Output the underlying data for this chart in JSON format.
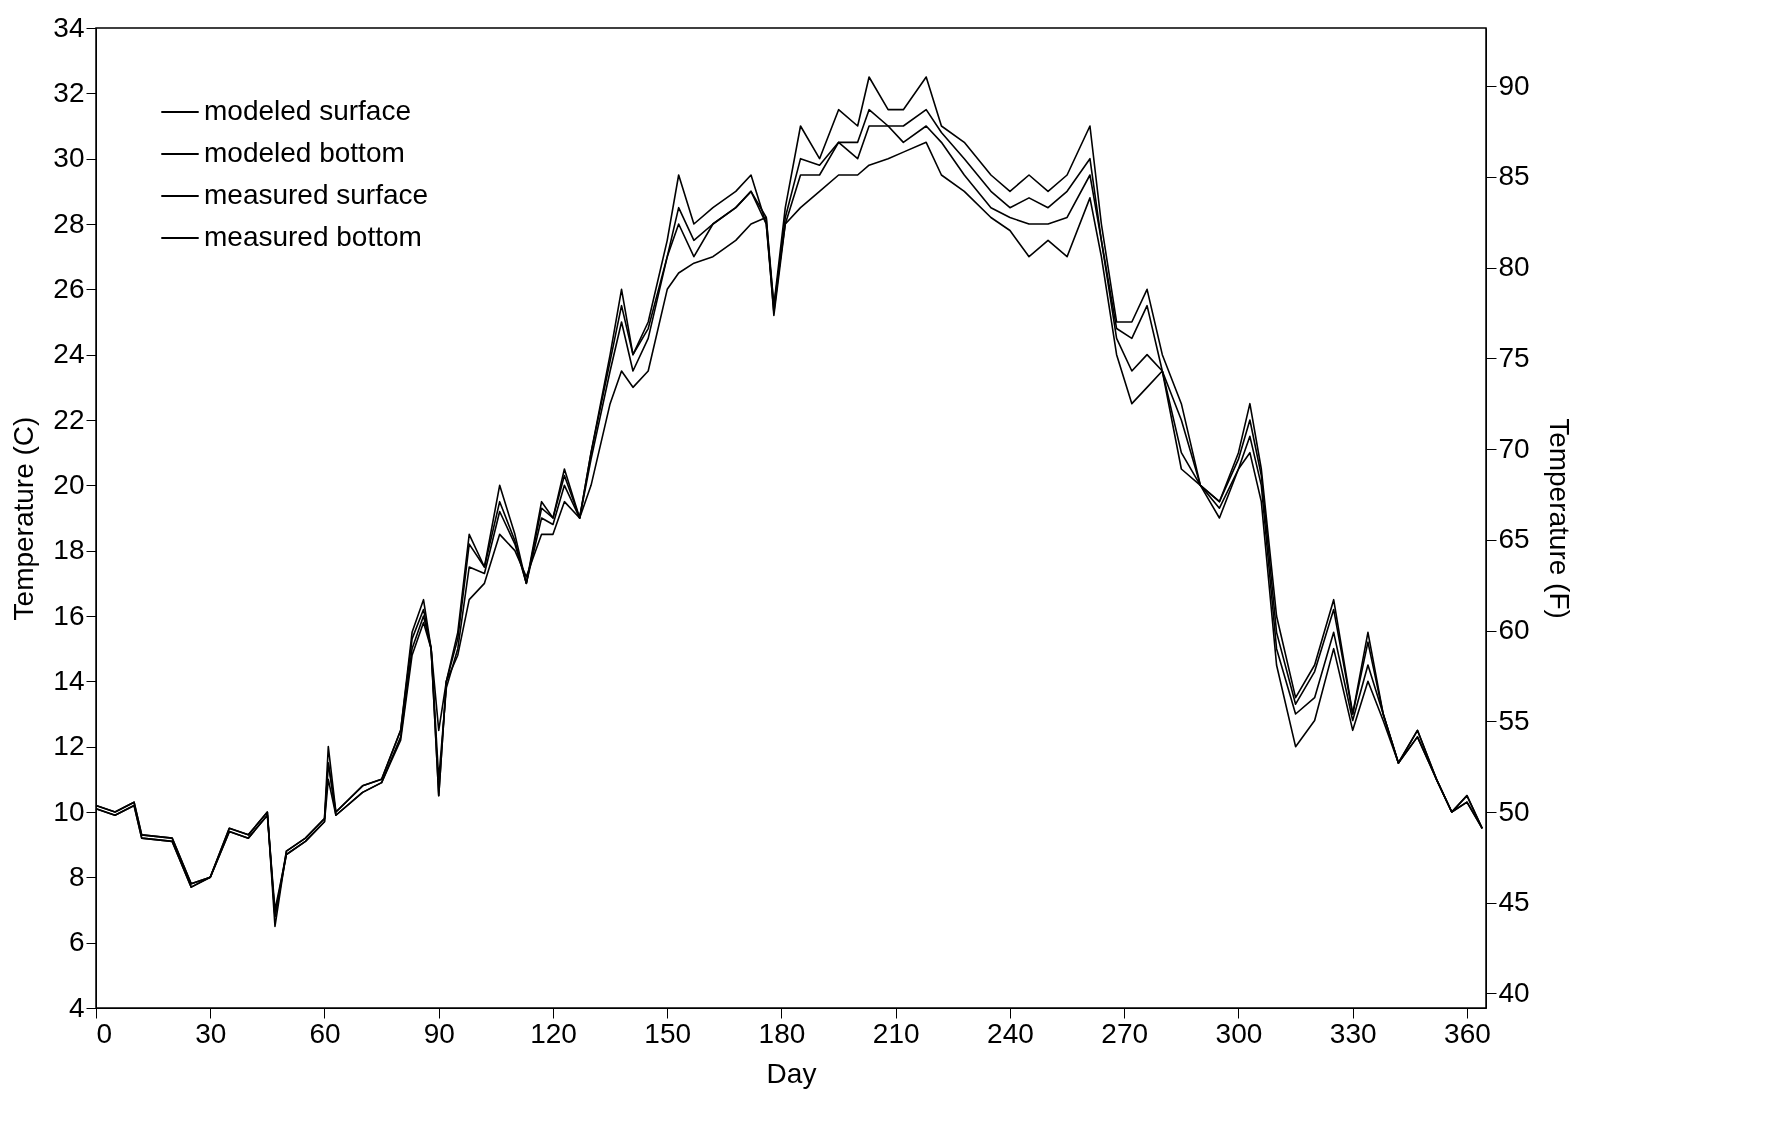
{
  "chart_data": {
    "type": "line",
    "xlabel": "Day",
    "ylabel": "Temperature  (C)",
    "y2label": "Temperature  (F)",
    "x": [
      0,
      5,
      10,
      12,
      20,
      25,
      30,
      35,
      40,
      45,
      47,
      50,
      55,
      60,
      61,
      63,
      70,
      75,
      80,
      83,
      86,
      88,
      90,
      92,
      95,
      98,
      102,
      106,
      110,
      113,
      117,
      120,
      123,
      127,
      130,
      135,
      138,
      141,
      145,
      150,
      153,
      157,
      162,
      168,
      172,
      176,
      178,
      181,
      185,
      190,
      195,
      200,
      203,
      208,
      212,
      218,
      222,
      228,
      235,
      240,
      245,
      250,
      255,
      261,
      264,
      268,
      272,
      276,
      280,
      285,
      290,
      295,
      300,
      303,
      306,
      310,
      315,
      320,
      325,
      330,
      334,
      338,
      342,
      347,
      352,
      356,
      360,
      364
    ],
    "series": [
      {
        "name": "modeled  surface",
        "color": "#000000",
        "values": [
          10.2,
          10,
          10.3,
          9.3,
          9.2,
          7.8,
          8,
          9.5,
          9.3,
          10,
          6.5,
          8.8,
          9.2,
          9.8,
          12,
          10,
          10.8,
          11,
          12.5,
          15.5,
          16.5,
          15,
          10.5,
          14,
          15.5,
          18.5,
          17.5,
          20,
          18.5,
          17,
          19.5,
          19,
          20.5,
          19,
          21,
          24,
          26,
          24,
          25,
          27.5,
          29.5,
          28,
          28.5,
          29,
          29.5,
          28,
          25.5,
          28.5,
          31,
          30,
          31.5,
          31,
          32.5,
          31.5,
          31.5,
          32.5,
          31,
          30.5,
          29.5,
          29,
          29.5,
          29,
          29.5,
          31,
          28,
          25,
          25,
          26,
          24,
          22.5,
          20,
          19.5,
          21,
          22.5,
          20.5,
          16,
          13.5,
          14.5,
          16.5,
          13,
          15.5,
          13,
          11.5,
          12.5,
          11,
          10,
          10.5,
          9.5
        ]
      },
      {
        "name": "modeled  bottom",
        "color": "#000000",
        "values": [
          10.2,
          10,
          10.3,
          9.3,
          9.2,
          7.8,
          8,
          9.5,
          9.3,
          10,
          6.8,
          8.8,
          9.2,
          9.8,
          11.5,
          10,
          10.8,
          11,
          12.5,
          15.3,
          16.2,
          15,
          10.5,
          14,
          15.3,
          18.2,
          17.5,
          19.5,
          18.3,
          17,
          19.3,
          19,
          20.3,
          19,
          21,
          23.8,
          25.5,
          24,
          24.8,
          27,
          28.5,
          27.5,
          28,
          28.5,
          29,
          28,
          25.3,
          28.2,
          30,
          29.8,
          30.5,
          30.5,
          31.5,
          31,
          31,
          31.5,
          30.8,
          30,
          29,
          28.5,
          28.8,
          28.5,
          29,
          30,
          27.5,
          24.8,
          24.5,
          25.5,
          23.5,
          22,
          20,
          19.5,
          20.8,
          22,
          20.3,
          15.5,
          13.3,
          14.3,
          16.2,
          13,
          15.2,
          13,
          11.5,
          12.5,
          11,
          10,
          10.5,
          9.5
        ]
      },
      {
        "name": "measured  surface",
        "color": "#000000",
        "values": [
          10.1,
          9.9,
          10.2,
          9.2,
          9.1,
          7.7,
          8,
          9.4,
          9.2,
          9.9,
          6.8,
          8.7,
          9.1,
          9.7,
          11.5,
          9.9,
          10.6,
          10.9,
          12.3,
          15,
          16,
          15,
          11,
          13.8,
          15,
          17.5,
          17.3,
          19.2,
          18.2,
          17,
          19,
          18.8,
          20,
          19,
          20.8,
          23.5,
          25,
          23.5,
          24.5,
          27,
          28,
          27,
          28,
          28.5,
          29,
          28.2,
          25.2,
          28,
          29.5,
          29.5,
          30.5,
          30,
          31,
          31,
          30.5,
          31,
          30.5,
          29.5,
          28.5,
          28.2,
          28,
          28,
          28.2,
          29.5,
          27.5,
          24.5,
          23.5,
          24,
          23.5,
          21,
          20,
          19.3,
          20.5,
          21.5,
          20,
          15,
          13,
          13.5,
          15.5,
          12.8,
          14.5,
          13,
          11.5,
          12.3,
          11,
          10,
          10.3,
          9.5
        ]
      },
      {
        "name": "measured  bottom",
        "color": "#000000",
        "values": [
          10.1,
          9.9,
          10.2,
          9.2,
          9.1,
          7.7,
          8,
          9.4,
          9.2,
          9.9,
          7,
          8.7,
          9.1,
          9.7,
          11,
          9.9,
          10.6,
          10.9,
          12.2,
          14.8,
          15.8,
          15,
          12.5,
          14,
          14.8,
          16.5,
          17,
          18.5,
          18,
          17.2,
          18.5,
          18.5,
          19.5,
          19,
          20,
          22.5,
          23.5,
          23,
          23.5,
          26,
          26.5,
          26.8,
          27,
          27.5,
          28,
          28.2,
          25.5,
          28,
          28.5,
          29,
          29.5,
          29.5,
          29.8,
          30,
          30.2,
          30.5,
          29.5,
          29,
          28.2,
          27.8,
          27,
          27.5,
          27,
          28.8,
          27,
          24,
          22.5,
          23,
          23.5,
          20.5,
          20,
          19,
          20.5,
          21,
          19.5,
          14.5,
          12,
          12.8,
          15,
          12.5,
          14,
          12.8,
          11.5,
          12.3,
          11,
          10,
          10.3,
          9.5
        ]
      }
    ],
    "xlim": [
      0,
      365
    ],
    "xticks": [
      0,
      30,
      60,
      90,
      120,
      150,
      180,
      210,
      240,
      270,
      300,
      330,
      360
    ],
    "ylim": [
      4,
      34
    ],
    "yticks": [
      4,
      6,
      8,
      10,
      12,
      14,
      16,
      18,
      20,
      22,
      24,
      26,
      28,
      30,
      32,
      34
    ],
    "y2lim": [
      39.2,
      93.2
    ],
    "y2ticks": [
      40,
      45,
      50,
      55,
      60,
      65,
      70,
      75,
      80,
      85,
      90
    ],
    "legend": "top left",
    "grid": false
  }
}
